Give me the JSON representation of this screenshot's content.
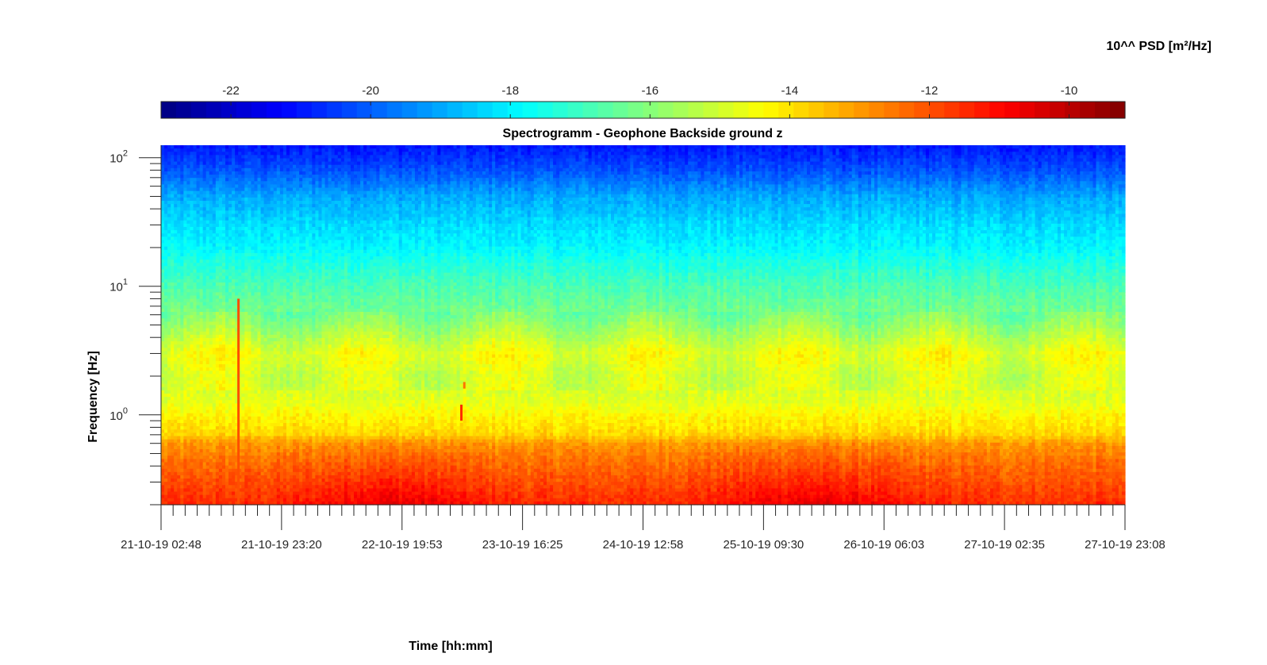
{
  "chart_data": {
    "type": "heatmap",
    "title": "Spectrogramm - Geophone Backside ground z",
    "xlabel": "Time [hh:mm]",
    "ylabel": "Frequency [Hz]",
    "y_scale": "log",
    "ylim": [
      0.2,
      125
    ],
    "y_ticks": [
      {
        "base": "10",
        "exp": "2",
        "value": 100
      },
      {
        "base": "10",
        "exp": "1",
        "value": 10
      },
      {
        "base": "10",
        "exp": "0",
        "value": 1
      }
    ],
    "x_ticks": [
      "21-10-19 02:48",
      "21-10-19 23:20",
      "22-10-19 19:53",
      "23-10-19 16:25",
      "24-10-19 12:58",
      "25-10-19 09:30",
      "26-10-19 06:03",
      "27-10-19 02:35",
      "27-10-19 23:08"
    ],
    "colorbar": {
      "label": "10^^ PSD [m²/Hz]",
      "range": [
        -23,
        -9.2
      ],
      "ticks": [
        "-22",
        "-20",
        "-18",
        "-16",
        "-14",
        "-12",
        "-10"
      ],
      "tick_values": [
        -22,
        -20,
        -18,
        -16,
        -14,
        -12,
        -10
      ],
      "colormap": "jet",
      "placement": "top"
    },
    "psd_profile": {
      "frequency_hz": [
        0.2,
        0.3,
        0.45,
        0.6,
        0.7,
        0.8,
        1.0,
        1.3,
        2.0,
        3.0,
        4.0,
        6.0,
        10,
        15,
        20,
        30,
        50,
        80,
        125
      ],
      "log10_psd": [
        -11.5,
        -12.0,
        -12.5,
        -13.0,
        -13.8,
        -14.0,
        -14.3,
        -14.8,
        -15.0,
        -14.6,
        -15.3,
        -16.2,
        -16.8,
        -17.4,
        -17.9,
        -18.3,
        -19.0,
        -20.2,
        -21.0
      ]
    },
    "events": [
      {
        "time": "21-10-19 16:00",
        "frequency_hz": [
          0.2,
          8
        ],
        "log10_psd": -12
      },
      {
        "time": "23-10-19 06:00",
        "frequency_hz": [
          0.9,
          1.2
        ],
        "log10_psd": -11.5
      },
      {
        "time": "23-10-19 06:30",
        "frequency_hz": [
          1.6,
          1.8
        ],
        "log10_psd": -12.5
      }
    ],
    "grid": false
  }
}
